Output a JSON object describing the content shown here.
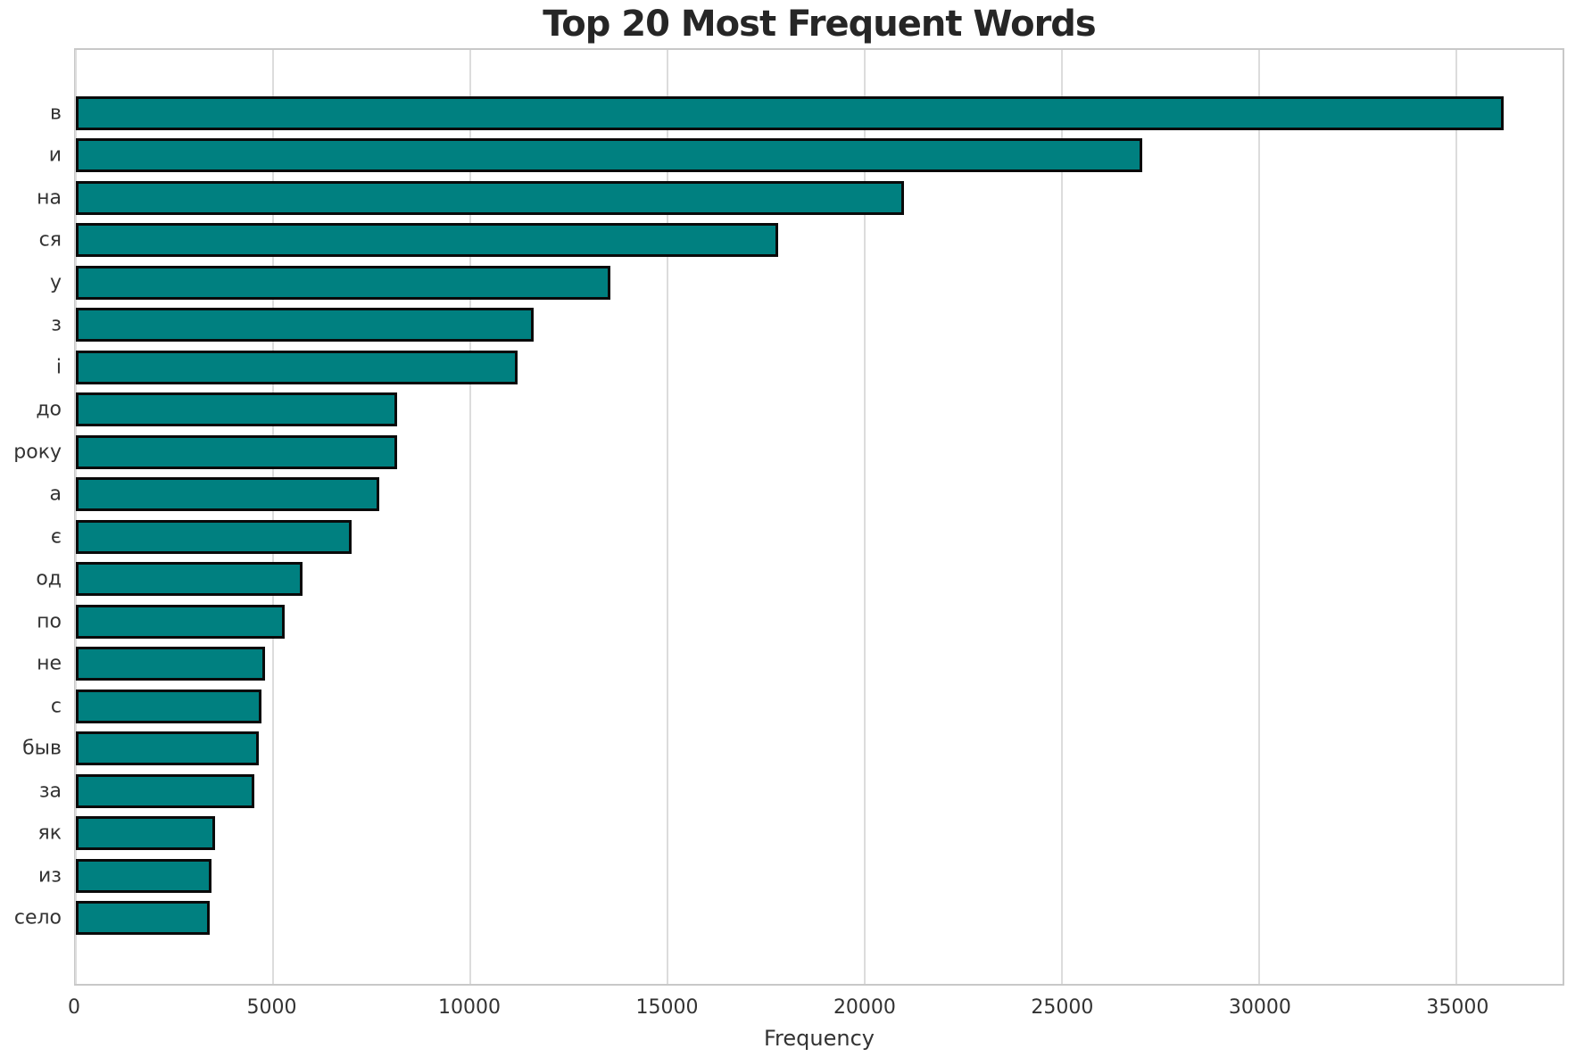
{
  "chart_data": {
    "type": "bar",
    "orientation": "horizontal",
    "title": "Top 20 Most Frequent Words",
    "xlabel": "Frequency",
    "categories": [
      "в",
      "и",
      "на",
      "ся",
      "у",
      "з",
      "і",
      "до",
      "року",
      "а",
      "є",
      "од",
      "по",
      "не",
      "с",
      "быв",
      "за",
      "як",
      "из",
      "село"
    ],
    "values": [
      36200,
      27050,
      21000,
      17800,
      13550,
      11600,
      11200,
      8150,
      8150,
      7700,
      7000,
      5750,
      5300,
      4800,
      4700,
      4650,
      4520,
      3520,
      3430,
      3400
    ],
    "xticks": [
      0,
      5000,
      10000,
      15000,
      20000,
      25000,
      30000,
      35000
    ],
    "xlim": [
      0,
      37700
    ],
    "grid": "vertical-gridlines-on",
    "legend": "none",
    "colors": {
      "bar_fill": "#008080",
      "bar_edge": "#0a0a0a",
      "gridline": "#dcdcdc",
      "spine": "#c8c8c8",
      "tick_text": "#333333",
      "title_text": "#262626",
      "background": "#ffffff"
    }
  }
}
